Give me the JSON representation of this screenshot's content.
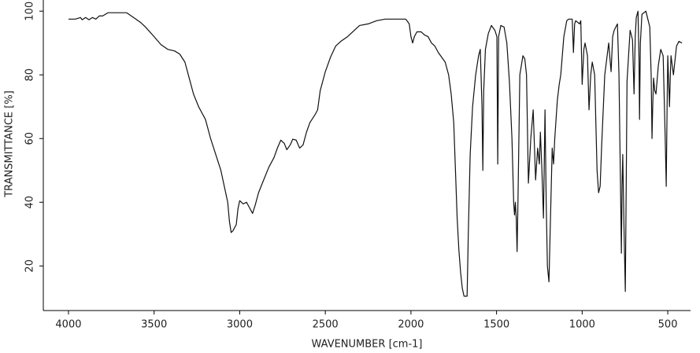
{
  "chart_data": {
    "type": "line",
    "xlabel": "WAVENUMBER [cm-1]",
    "ylabel": "TRANSMITTANCE [%]",
    "color": "#111111",
    "xlim": [
      4147,
      367
    ],
    "ylim": [
      6,
      103.5
    ],
    "xticks": [
      4000,
      3500,
      3000,
      2500,
      2000,
      1500,
      1000,
      500
    ],
    "yticks": [
      20,
      40,
      60,
      80,
      100
    ],
    "grid": false,
    "x": [
      4000,
      3960,
      3930,
      3920,
      3900,
      3880,
      3860,
      3840,
      3820,
      3800,
      3770,
      3700,
      3660,
      3620,
      3580,
      3550,
      3500,
      3460,
      3420,
      3380,
      3350,
      3320,
      3300,
      3270,
      3240,
      3200,
      3170,
      3140,
      3110,
      3090,
      3070,
      3060,
      3050,
      3040,
      3020,
      3010,
      3000,
      2980,
      2960,
      2940,
      2925,
      2910,
      2890,
      2860,
      2830,
      2800,
      2780,
      2760,
      2740,
      2725,
      2705,
      2690,
      2670,
      2650,
      2630,
      2610,
      2590,
      2560,
      2545,
      2530,
      2500,
      2470,
      2440,
      2410,
      2370,
      2330,
      2300,
      2250,
      2200,
      2150,
      2030,
      2010,
      2000,
      1990,
      1980,
      1965,
      1940,
      1920,
      1900,
      1880,
      1860,
      1840,
      1800,
      1780,
      1765,
      1750,
      1740,
      1730,
      1720,
      1710,
      1700,
      1690,
      1672,
      1665,
      1654,
      1640,
      1622,
      1605,
      1595,
      1585,
      1580,
      1575,
      1565,
      1548,
      1530,
      1510,
      1498,
      1493,
      1488,
      1475,
      1456,
      1440,
      1425,
      1410,
      1400,
      1395,
      1390,
      1385,
      1380,
      1375,
      1364,
      1346,
      1335,
      1325,
      1314,
      1300,
      1286,
      1272,
      1260,
      1250,
      1244,
      1235,
      1226,
      1217,
      1210,
      1203,
      1194,
      1185,
      1175,
      1167,
      1160,
      1145,
      1134,
      1125,
      1107,
      1090,
      1079,
      1058,
      1051,
      1044,
      1038,
      1015,
      1008,
      1000,
      990,
      983,
      969,
      960,
      950,
      941,
      927,
      913,
      904,
      895,
      886,
      868,
      845,
      836,
      831,
      822,
      813,
      794,
      785,
      780,
      776,
      771,
      767,
      763,
      755,
      748,
      742,
      738,
      720,
      706,
      697,
      690,
      684,
      674,
      668,
      665,
      660,
      651,
      628,
      605,
      597,
      592,
      588,
      583,
      576,
      569,
      555,
      541,
      527,
      515,
      509,
      504,
      500,
      495,
      490,
      485,
      481,
      467,
      449,
      435,
      417
    ],
    "values": [
      97.5,
      97.5,
      98,
      97.3,
      98,
      97.3,
      98,
      97.5,
      98.5,
      98.5,
      99.5,
      99.5,
      99.5,
      98,
      96.5,
      95,
      92,
      89.5,
      88,
      87.5,
      86.5,
      84,
      80,
      74,
      70,
      66,
      60,
      55,
      50,
      45,
      40,
      34,
      30.5,
      31,
      33,
      38,
      40.5,
      39.5,
      40,
      38,
      36.5,
      39,
      43,
      47,
      51,
      54,
      57,
      59.5,
      58.5,
      56.5,
      58,
      59.8,
      59.5,
      57,
      58,
      62,
      65,
      67.5,
      69,
      75,
      81,
      85.5,
      89,
      90.5,
      92,
      94,
      95.5,
      96,
      97,
      97.5,
      97.5,
      96,
      92,
      90,
      92,
      93.5,
      93.5,
      92.5,
      92,
      90,
      89,
      87,
      84,
      80,
      74,
      65,
      50,
      35,
      25,
      18,
      13,
      10.5,
      10.5,
      30,
      55,
      70,
      80,
      86,
      88,
      70,
      50,
      75,
      88,
      93,
      95.5,
      94,
      92,
      52,
      92,
      95.5,
      95,
      90,
      78,
      60,
      40,
      36,
      40,
      35,
      24.5,
      40,
      80,
      86,
      85,
      80,
      46,
      60,
      69,
      47,
      57,
      52,
      62,
      50,
      35,
      69,
      40,
      20,
      15,
      35,
      57,
      52,
      60,
      72,
      77,
      80,
      92,
      97,
      97.5,
      97.5,
      87,
      96,
      97,
      96,
      97,
      77,
      88,
      90,
      86,
      69,
      80,
      84,
      80,
      50,
      43,
      45,
      58,
      80,
      90,
      84,
      81,
      92,
      94,
      96,
      80,
      60,
      45,
      24,
      45,
      55,
      30,
      12,
      50,
      78,
      94,
      91,
      74,
      92,
      98,
      100,
      85,
      66,
      90,
      99,
      100,
      95,
      80,
      60,
      70,
      79,
      75,
      74,
      83,
      88,
      86,
      60,
      45,
      70,
      86,
      78,
      70,
      80,
      86,
      80,
      89,
      90.5,
      90
    ]
  }
}
